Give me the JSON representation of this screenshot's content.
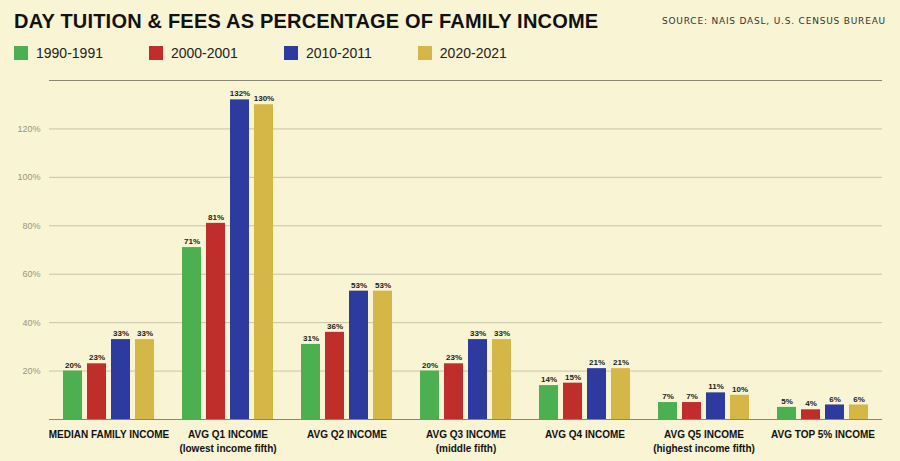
{
  "chart_data": {
    "type": "bar",
    "title": "DAY TUITION & FEES AS PERCENTAGE OF FAMILY INCOME",
    "source": "SOURCE: NAIS DASL, U.S. CENSUS BUREAU",
    "categories": [
      "MEDIAN FAMILY INCOME",
      "AVG Q1 INCOME\n(lowest income fifth)",
      "AVG Q2 INCOME",
      "AVG Q3 INCOME\n(middle fifth)",
      "AVG Q4 INCOME",
      "AVG Q5 INCOME\n(highest income fifth)",
      "AVG TOP 5% INCOME"
    ],
    "series": [
      {
        "name": "1990-1991",
        "color": "#4caf50",
        "values": [
          20,
          71,
          31,
          20,
          14,
          7,
          5
        ],
        "value_labels": [
          "20%",
          "71%",
          "31%",
          "20%",
          "14%",
          "7%",
          "5%"
        ]
      },
      {
        "name": "2000-2001",
        "color": "#bf2e2a",
        "values": [
          23,
          81,
          36,
          23,
          15,
          7,
          4
        ],
        "value_labels": [
          "23%",
          "81%",
          "36%",
          "23%",
          "15%",
          "7%",
          "4%"
        ]
      },
      {
        "name": "2010-2011",
        "color": "#2d3a9e",
        "values": [
          33,
          132,
          53,
          33,
          21,
          11,
          6
        ],
        "value_labels": [
          "33%",
          "132%",
          "53%",
          "33%",
          "21%",
          "11%",
          "6%"
        ]
      },
      {
        "name": "2020-2021",
        "color": "#d5b748",
        "values": [
          33,
          130,
          53,
          33,
          21,
          10,
          6
        ],
        "value_labels": [
          "33%",
          "130%",
          "53%",
          "33%",
          "21%",
          "10%",
          "6%"
        ]
      }
    ],
    "ylim": [
      0,
      140
    ],
    "yticks": [
      {
        "value": 20,
        "label": "20%"
      },
      {
        "value": 40,
        "label": "40%"
      },
      {
        "value": 60,
        "label": "60%"
      },
      {
        "value": 80,
        "label": "80%"
      },
      {
        "value": 100,
        "label": "100%"
      },
      {
        "value": 120,
        "label": "120%"
      }
    ],
    "grid": true,
    "legend": "top-left",
    "data_labels": true
  }
}
